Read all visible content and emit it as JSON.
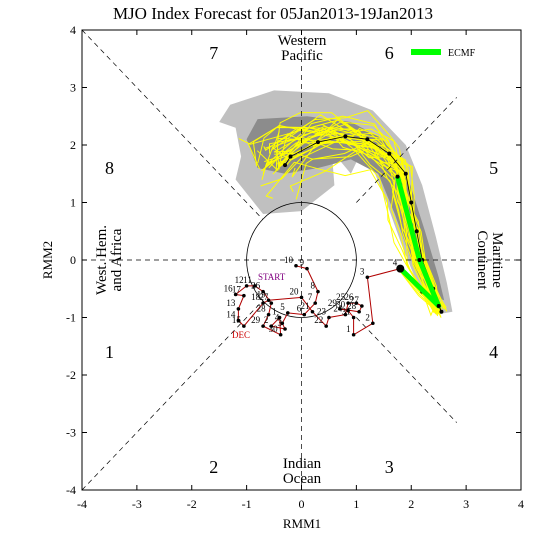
{
  "chart_data": {
    "type": "scatter",
    "title": "MJO Index Forecast for 05Jan2013-19Jan2013",
    "xlabel": "RMM1",
    "ylabel": "RMM2",
    "xlim": [
      -4,
      4
    ],
    "ylim": [
      -4,
      4
    ],
    "x_ticks": [
      "-4",
      "-3",
      "-2",
      "-1",
      "0",
      "1",
      "2",
      "3",
      "4"
    ],
    "y_ticks": [
      "-4",
      "-3",
      "-2",
      "-1",
      "0",
      "1",
      "2",
      "3",
      "4"
    ],
    "phases": [
      {
        "label": "1",
        "x": -3.5,
        "y": -1.6
      },
      {
        "label": "2",
        "x": -1.6,
        "y": -3.6
      },
      {
        "label": "3",
        "x": 1.6,
        "y": -3.6
      },
      {
        "label": "4",
        "x": 3.5,
        "y": -1.6
      },
      {
        "label": "5",
        "x": 3.5,
        "y": 1.6
      },
      {
        "label": "6",
        "x": 1.6,
        "y": 3.6
      },
      {
        "label": "7",
        "x": -1.6,
        "y": 3.6
      },
      {
        "label": "8",
        "x": -3.5,
        "y": 1.6
      }
    ],
    "regions": {
      "top": [
        "Western",
        "Pacific"
      ],
      "bottom": [
        "Indian",
        "Ocean"
      ],
      "left": [
        "West. Hem.",
        "and Africa"
      ],
      "right": [
        "Maritime",
        "Continent"
      ]
    },
    "legend": [
      {
        "name": "ECMF",
        "color": "#00ff00"
      }
    ],
    "observed_labels": {
      "start": "START",
      "month": "DEC"
    },
    "observed": [
      {
        "d": "10",
        "x": -0.1,
        "y": -0.1
      },
      {
        "d": "9",
        "x": 0.1,
        "y": -0.15
      },
      {
        "d": "8",
        "x": 0.3,
        "y": -0.55
      },
      {
        "d": "7",
        "x": 0.25,
        "y": -0.75
      },
      {
        "d": "6",
        "x": 0.05,
        "y": -0.95
      },
      {
        "d": "5",
        "x": -0.25,
        "y": -0.92
      },
      {
        "d": "4",
        "x": -0.35,
        "y": -1.1
      },
      {
        "d": "3",
        "x": -0.3,
        "y": -1.2
      },
      {
        "d": "2",
        "x": -0.55,
        "y": -1.15
      },
      {
        "d": "1",
        "x": -0.4,
        "y": -1.0
      },
      {
        "d": "30",
        "x": -0.38,
        "y": -1.3
      },
      {
        "d": "29",
        "x": -0.7,
        "y": -1.15
      },
      {
        "d": "28",
        "x": -0.6,
        "y": -0.95
      },
      {
        "d": "27",
        "x": -0.55,
        "y": -0.75
      },
      {
        "d": "26",
        "x": -0.7,
        "y": -0.55
      },
      {
        "d": "11",
        "x": -0.85,
        "y": -0.45
      },
      {
        "d": "12",
        "x": -1.0,
        "y": -0.45
      },
      {
        "d": "16",
        "x": -1.2,
        "y": -0.6
      },
      {
        "d": "17",
        "x": -1.05,
        "y": -0.62
      },
      {
        "d": "13",
        "x": -1.15,
        "y": -0.85
      },
      {
        "d": "14",
        "x": -1.15,
        "y": -1.05
      },
      {
        "d": "15",
        "x": -1.05,
        "y": -1.15
      },
      {
        "d": "18",
        "x": -0.7,
        "y": -0.75
      },
      {
        "d": "19",
        "x": -0.6,
        "y": -0.7
      },
      {
        "d": "20",
        "x": 0.0,
        "y": -0.65
      },
      {
        "d": "21",
        "x": 0.2,
        "y": -0.9
      },
      {
        "d": "22",
        "x": 0.45,
        "y": -1.15
      },
      {
        "d": "23",
        "x": 0.5,
        "y": -1.0
      },
      {
        "d": "24",
        "x": 0.8,
        "y": -0.95
      },
      {
        "d": "25",
        "x": 0.85,
        "y": -0.75
      },
      {
        "d": "26",
        "x": 1.0,
        "y": -0.75
      },
      {
        "d": "27",
        "x": 1.1,
        "y": -0.8
      },
      {
        "d": "28",
        "x": 1.05,
        "y": -0.9
      },
      {
        "d": "29",
        "x": 0.7,
        "y": -0.85
      },
      {
        "d": "30",
        "x": 0.85,
        "y": -0.88
      },
      {
        "d": "31",
        "x": 0.95,
        "y": -1.0
      },
      {
        "d": "1",
        "x": 0.95,
        "y": -1.3
      },
      {
        "d": "2",
        "x": 1.3,
        "y": -1.1
      },
      {
        "d": "3",
        "x": 1.2,
        "y": -0.3
      },
      {
        "d": "4",
        "x": 1.8,
        "y": -0.15
      }
    ],
    "ensemble_mean": [
      {
        "x": 1.8,
        "y": -0.15
      },
      {
        "x": 2.2,
        "y": -0.55
      },
      {
        "x": 2.5,
        "y": -0.8
      },
      {
        "x": 2.55,
        "y": -0.9
      },
      {
        "x": 2.4,
        "y": -0.5
      },
      {
        "x": 2.2,
        "y": 0.0
      },
      {
        "x": 2.1,
        "y": 0.5
      },
      {
        "x": 2.0,
        "y": 1.0
      },
      {
        "x": 1.9,
        "y": 1.5
      },
      {
        "x": 1.6,
        "y": 1.85
      },
      {
        "x": 1.2,
        "y": 2.1
      },
      {
        "x": 0.8,
        "y": 2.15
      },
      {
        "x": 0.3,
        "y": 2.05
      },
      {
        "x": -0.2,
        "y": 1.8
      },
      {
        "x": -0.3,
        "y": 1.65
      }
    ],
    "ecmf": [
      {
        "x": 1.8,
        "y": -0.15
      },
      {
        "x": 2.5,
        "y": -0.8
      },
      {
        "x": 2.15,
        "y": 0.0
      },
      {
        "x": 1.75,
        "y": 1.45
      }
    ],
    "spread_outer": [
      [
        -1.3,
        2.7
      ],
      [
        -0.5,
        2.95
      ],
      [
        0.5,
        2.9
      ],
      [
        1.3,
        2.6
      ],
      [
        1.9,
        2.0
      ],
      [
        2.2,
        1.3
      ],
      [
        2.45,
        0.4
      ],
      [
        2.65,
        -0.4
      ],
      [
        2.75,
        -0.9
      ],
      [
        2.45,
        -0.95
      ],
      [
        2.15,
        -0.5
      ],
      [
        1.85,
        0.2
      ],
      [
        1.55,
        1.0
      ],
      [
        1.3,
        1.6
      ],
      [
        1.0,
        1.7
      ],
      [
        0.9,
        1.5
      ],
      [
        0.55,
        1.9
      ],
      [
        0.6,
        1.3
      ],
      [
        0.0,
        0.85
      ],
      [
        -0.7,
        0.8
      ],
      [
        -1.2,
        1.4
      ],
      [
        -1.1,
        1.8
      ],
      [
        -1.2,
        2.3
      ],
      [
        -1.5,
        2.4
      ]
    ],
    "spread_inner": [
      [
        -0.8,
        2.45
      ],
      [
        0.1,
        2.5
      ],
      [
        0.9,
        2.4
      ],
      [
        1.5,
        2.1
      ],
      [
        1.95,
        1.4
      ],
      [
        2.25,
        0.5
      ],
      [
        2.5,
        -0.3
      ],
      [
        2.6,
        -0.7
      ],
      [
        2.3,
        -0.6
      ],
      [
        2.0,
        0.0
      ],
      [
        1.7,
        0.8
      ],
      [
        1.4,
        1.5
      ],
      [
        0.9,
        1.75
      ],
      [
        0.3,
        1.6
      ],
      [
        -0.3,
        1.5
      ],
      [
        -0.8,
        1.6
      ],
      [
        -1.0,
        2.1
      ]
    ]
  }
}
